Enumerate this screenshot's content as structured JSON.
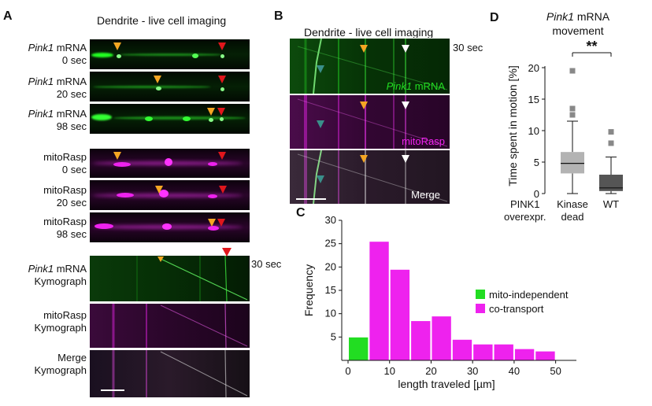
{
  "panelA": {
    "letter": "A",
    "title": "Dendrite - live cell imaging",
    "rows": [
      {
        "name": "Pink1",
        "suffix": " mRNA",
        "time": "0 sec"
      },
      {
        "name": "Pink1",
        "suffix": " mRNA",
        "time": "20 sec"
      },
      {
        "name": "Pink1",
        "suffix": " mRNA",
        "time": "98 sec"
      },
      {
        "name": "mitoRasp",
        "suffix": "",
        "time": "0 sec"
      },
      {
        "name": "mitoRasp",
        "suffix": "",
        "time": "20 sec"
      },
      {
        "name": "mitoRasp",
        "suffix": "",
        "time": "98 sec"
      }
    ],
    "kymo": [
      {
        "name": "Pink1",
        "suffix": " mRNA",
        "sub": "Kymograph"
      },
      {
        "name": "mitoRasp",
        "suffix": "",
        "sub": "Kymograph"
      },
      {
        "name": "Merge",
        "suffix": "",
        "sub": "Kymograph"
      }
    ],
    "scale_time": "30 sec"
  },
  "panelB": {
    "letter": "B",
    "title": "Dendrite - live cell imaging",
    "scale_time": "30 sec",
    "label_mrna_italic": "Pink1",
    "label_mrna_rest": " mRNA",
    "label_mito": "mitoRasp",
    "label_merge": "Merge",
    "colors": {
      "mrna": "#22dd22",
      "mito": "#ee22ee",
      "merge": "#ffffff"
    }
  },
  "panelC": {
    "letter": "C",
    "chart_data": {
      "type": "bar",
      "xlabel": "length traveled [µm]",
      "ylabel": "Frequency",
      "xlim": [
        0,
        55
      ],
      "ylim": [
        0,
        30
      ],
      "xticks": [
        0,
        10,
        20,
        30,
        40,
        50
      ],
      "yticks": [
        5,
        10,
        15,
        20,
        25,
        30
      ],
      "bin_width": 5,
      "bins": [
        0,
        5,
        10,
        15,
        20,
        25,
        30,
        35,
        40,
        45
      ],
      "series": [
        {
          "name": "mito-independent",
          "color": "#22dd22",
          "values": [
            5,
            1,
            2.5,
            0,
            0,
            0,
            0,
            0,
            0,
            0
          ]
        },
        {
          "name": "co-transport",
          "color": "#ee22ee",
          "values": [
            0,
            25.5,
            19.5,
            8.5,
            9.5,
            4.5,
            3.5,
            3.5,
            2.5,
            2
          ]
        }
      ],
      "legend_position": "right"
    }
  },
  "panelD": {
    "letter": "D",
    "title_italic": "Pink1",
    "title_rest": " mRNA",
    "title_line2": "movement",
    "significance": "**",
    "row_label_1": "PINK1",
    "row_label_2": "overexpr.",
    "chart_data": {
      "type": "box",
      "ylabel": "Time spent in motion [%]",
      "ylim": [
        0,
        22
      ],
      "yticks": [
        0,
        5,
        10,
        15,
        20
      ],
      "groups": [
        {
          "label_1": "Kinase",
          "label_2": "dead",
          "color": "#b3b3b3",
          "whisker_low": 0,
          "q1": 3.2,
          "median": 4.8,
          "q3": 6.6,
          "whisker_high": 11.5,
          "outliers": [
            12.5,
            13.5,
            19.5
          ]
        },
        {
          "label_1": "WT",
          "label_2": "",
          "color": "#555555",
          "whisker_low": 0,
          "q1": 0.4,
          "median": 0.9,
          "q3": 3.0,
          "whisker_high": 5.8,
          "outliers": [
            8.0,
            9.8
          ]
        }
      ]
    }
  }
}
